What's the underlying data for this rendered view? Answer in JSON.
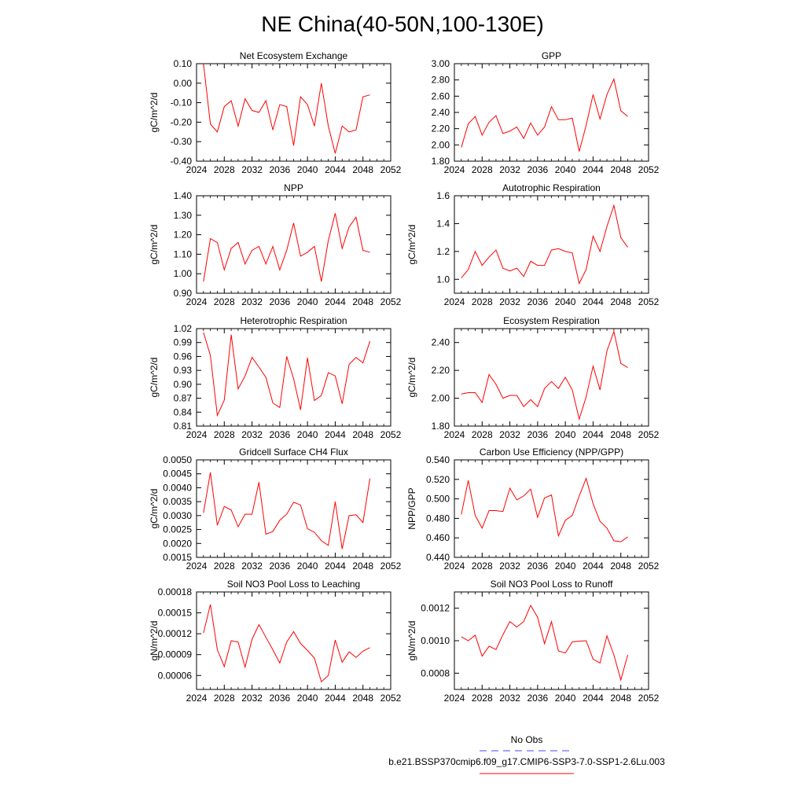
{
  "figure": {
    "title": "NE China(40-50N,100-130E)"
  },
  "legend": {
    "items": [
      {
        "label": "No Obs",
        "color": "#4a4aff",
        "dashed": true
      },
      {
        "label": "b.e21.BSSP370cmip6.f09_g17.CMIP6-SSP3-7.0-SSP1-2.6Lu.003",
        "color": "#ff0000",
        "dashed": false
      }
    ]
  },
  "chart_data": [
    {
      "type": "line",
      "title": "Net Ecosystem Exchange",
      "ylabel": "gC/m^2/d",
      "xlim": [
        2024,
        2052
      ],
      "ylim": [
        -0.4,
        0.1
      ],
      "xticks": [
        2024,
        2028,
        2032,
        2036,
        2040,
        2044,
        2048,
        2052
      ],
      "yticks": [
        "0.10",
        "0.00",
        "-0.10",
        "-0.20",
        "-0.30",
        "-0.40"
      ],
      "series": [
        {
          "color": "#ff0000",
          "x": [
            2025,
            2026,
            2027,
            2028,
            2029,
            2030,
            2031,
            2032,
            2033,
            2034,
            2035,
            2036,
            2037,
            2038,
            2039,
            2040,
            2041,
            2042,
            2043,
            2044,
            2045,
            2046,
            2047,
            2048,
            2049
          ],
          "y": [
            0.1,
            -0.21,
            -0.25,
            -0.12,
            -0.09,
            -0.22,
            -0.08,
            -0.14,
            -0.15,
            -0.09,
            -0.24,
            -0.11,
            -0.12,
            -0.32,
            -0.07,
            -0.11,
            -0.22,
            0.0,
            -0.22,
            -0.36,
            -0.22,
            -0.25,
            -0.24,
            -0.07,
            -0.06
          ]
        }
      ]
    },
    {
      "type": "line",
      "title": "GPP",
      "ylabel": "",
      "xlim": [
        2024,
        2052
      ],
      "ylim": [
        1.8,
        3.0
      ],
      "xticks": [
        2024,
        2028,
        2032,
        2036,
        2040,
        2044,
        2048,
        2052
      ],
      "yticks": [
        "3.00",
        "2.80",
        "2.60",
        "2.40",
        "2.20",
        "2.00",
        "1.80"
      ],
      "series": [
        {
          "color": "#ff0000",
          "x": [
            2025,
            2026,
            2027,
            2028,
            2029,
            2030,
            2031,
            2032,
            2033,
            2034,
            2035,
            2036,
            2037,
            2038,
            2039,
            2040,
            2041,
            2042,
            2043,
            2044,
            2045,
            2046,
            2047,
            2048,
            2049
          ],
          "y": [
            1.97,
            2.26,
            2.35,
            2.12,
            2.28,
            2.36,
            2.14,
            2.17,
            2.22,
            2.08,
            2.27,
            2.12,
            2.22,
            2.47,
            2.31,
            2.31,
            2.33,
            1.92,
            2.24,
            2.62,
            2.32,
            2.62,
            2.81,
            2.42,
            2.35
          ]
        }
      ]
    },
    {
      "type": "line",
      "title": "NPP",
      "ylabel": "gC/m^2/d",
      "xlim": [
        2024,
        2052
      ],
      "ylim": [
        0.9,
        1.4
      ],
      "xticks": [
        2024,
        2028,
        2032,
        2036,
        2040,
        2044,
        2048,
        2052
      ],
      "yticks": [
        "1.40",
        "1.30",
        "1.20",
        "1.10",
        "1.00",
        "0.90"
      ],
      "series": [
        {
          "color": "#ff0000",
          "x": [
            2025,
            2026,
            2027,
            2028,
            2029,
            2030,
            2031,
            2032,
            2033,
            2034,
            2035,
            2036,
            2037,
            2038,
            2039,
            2040,
            2041,
            2042,
            2043,
            2044,
            2045,
            2046,
            2047,
            2048,
            2049
          ],
          "y": [
            0.96,
            1.18,
            1.16,
            1.02,
            1.13,
            1.16,
            1.05,
            1.12,
            1.14,
            1.05,
            1.14,
            1.02,
            1.12,
            1.26,
            1.09,
            1.11,
            1.14,
            0.96,
            1.17,
            1.31,
            1.13,
            1.24,
            1.29,
            1.12,
            1.11
          ]
        }
      ]
    },
    {
      "type": "line",
      "title": "Autotrophic Respiration",
      "ylabel": "gC/m^2/d",
      "xlim": [
        2024,
        2052
      ],
      "ylim": [
        0.9,
        1.6
      ],
      "xticks": [
        2024,
        2028,
        2032,
        2036,
        2040,
        2044,
        2048,
        2052
      ],
      "yticks": [
        "1.6",
        "1.4",
        "1.2",
        "1.0"
      ],
      "series": [
        {
          "color": "#ff0000",
          "x": [
            2025,
            2026,
            2027,
            2028,
            2029,
            2030,
            2031,
            2032,
            2033,
            2034,
            2035,
            2036,
            2037,
            2038,
            2039,
            2040,
            2041,
            2042,
            2043,
            2044,
            2045,
            2046,
            2047,
            2048,
            2049
          ],
          "y": [
            1.01,
            1.07,
            1.2,
            1.1,
            1.16,
            1.21,
            1.08,
            1.06,
            1.08,
            1.02,
            1.13,
            1.1,
            1.1,
            1.21,
            1.22,
            1.2,
            1.19,
            0.97,
            1.07,
            1.31,
            1.2,
            1.38,
            1.53,
            1.3,
            1.23
          ]
        }
      ]
    },
    {
      "type": "line",
      "title": "Heterotrophic Respiration",
      "ylabel": "gC/m^2/d",
      "xlim": [
        2024,
        2052
      ],
      "ylim": [
        0.81,
        1.02
      ],
      "xticks": [
        2024,
        2028,
        2032,
        2036,
        2040,
        2044,
        2048,
        2052
      ],
      "yticks": [
        "1.02",
        "0.99",
        "0.96",
        "0.93",
        "0.90",
        "0.87",
        "0.84",
        "0.81"
      ],
      "series": [
        {
          "color": "#ff0000",
          "x": [
            2025,
            2026,
            2027,
            2028,
            2029,
            2030,
            2031,
            2032,
            2033,
            2034,
            2035,
            2036,
            2037,
            2038,
            2039,
            2040,
            2041,
            2042,
            2043,
            2044,
            2045,
            2046,
            2047,
            2048,
            2049
          ],
          "y": [
            1.012,
            0.962,
            0.833,
            0.866,
            1.007,
            0.89,
            0.918,
            0.958,
            0.937,
            0.915,
            0.86,
            0.85,
            0.96,
            0.912,
            0.845,
            0.957,
            0.865,
            0.876,
            0.925,
            0.918,
            0.858,
            0.943,
            0.958,
            0.946,
            0.993
          ]
        }
      ]
    },
    {
      "type": "line",
      "title": "Ecosystem Respiration",
      "ylabel": "gC/m^2/d",
      "xlim": [
        2024,
        2052
      ],
      "ylim": [
        1.8,
        2.5
      ],
      "xticks": [
        2024,
        2028,
        2032,
        2036,
        2040,
        2044,
        2048,
        2052
      ],
      "yticks": [
        "2.40",
        "2.20",
        "2.00",
        "1.80"
      ],
      "series": [
        {
          "color": "#ff0000",
          "x": [
            2025,
            2026,
            2027,
            2028,
            2029,
            2030,
            2031,
            2032,
            2033,
            2034,
            2035,
            2036,
            2037,
            2038,
            2039,
            2040,
            2041,
            2042,
            2043,
            2044,
            2045,
            2046,
            2047,
            2048,
            2049
          ],
          "y": [
            2.03,
            2.04,
            2.04,
            1.97,
            2.17,
            2.1,
            2.0,
            2.02,
            2.02,
            1.94,
            1.99,
            1.94,
            2.07,
            2.12,
            2.07,
            2.15,
            2.06,
            1.85,
            2.01,
            2.23,
            2.06,
            2.34,
            2.48,
            2.25,
            2.22
          ]
        }
      ]
    },
    {
      "type": "line",
      "title": "Gridcell Surface CH4 Flux",
      "ylabel": "gC/m^2/d",
      "xlim": [
        2024,
        2052
      ],
      "ylim": [
        0.0015,
        0.005
      ],
      "xticks": [
        2024,
        2028,
        2032,
        2036,
        2040,
        2044,
        2048,
        2052
      ],
      "yticks": [
        "0.0050",
        "0.0045",
        "0.0040",
        "0.0035",
        "0.0030",
        "0.0025",
        "0.0020",
        "0.0015"
      ],
      "series": [
        {
          "color": "#ff0000",
          "x": [
            2025,
            2026,
            2027,
            2028,
            2029,
            2030,
            2031,
            2032,
            2033,
            2034,
            2035,
            2036,
            2037,
            2038,
            2039,
            2040,
            2041,
            2042,
            2043,
            2044,
            2045,
            2046,
            2047,
            2048,
            2049
          ],
          "y": [
            0.0031,
            0.00455,
            0.00265,
            0.00333,
            0.0032,
            0.0026,
            0.00305,
            0.00305,
            0.0042,
            0.00233,
            0.00243,
            0.00283,
            0.00305,
            0.00348,
            0.00338,
            0.00253,
            0.0024,
            0.0021,
            0.00193,
            0.0035,
            0.0018,
            0.003,
            0.00303,
            0.00275,
            0.00433
          ]
        }
      ]
    },
    {
      "type": "line",
      "title": "Carbon Use Efficiency (NPP/GPP)",
      "ylabel": "NPP/GPP",
      "xlim": [
        2024,
        2052
      ],
      "ylim": [
        0.44,
        0.54
      ],
      "xticks": [
        2024,
        2028,
        2032,
        2036,
        2040,
        2044,
        2048,
        2052
      ],
      "yticks": [
        "0.540",
        "0.520",
        "0.500",
        "0.480",
        "0.460",
        "0.440"
      ],
      "series": [
        {
          "color": "#ff0000",
          "x": [
            2025,
            2026,
            2027,
            2028,
            2029,
            2030,
            2031,
            2032,
            2033,
            2034,
            2035,
            2036,
            2037,
            2038,
            2039,
            2040,
            2041,
            2042,
            2043,
            2044,
            2045,
            2046,
            2047,
            2048,
            2049
          ],
          "y": [
            0.484,
            0.519,
            0.483,
            0.47,
            0.488,
            0.488,
            0.487,
            0.511,
            0.499,
            0.503,
            0.51,
            0.481,
            0.501,
            0.504,
            0.462,
            0.478,
            0.483,
            0.503,
            0.521,
            0.495,
            0.477,
            0.47,
            0.457,
            0.456,
            0.461
          ]
        }
      ]
    },
    {
      "type": "line",
      "title": "Soil NO3 Pool Loss to Leaching",
      "ylabel": "gN/m^2/d",
      "xlim": [
        2024,
        2052
      ],
      "ylim": [
        4e-05,
        0.00018
      ],
      "xticks": [
        2024,
        2028,
        2032,
        2036,
        2040,
        2044,
        2048,
        2052
      ],
      "yticks": [
        "0.00018",
        "0.00015",
        "0.00012",
        "0.00009",
        "0.00006"
      ],
      "series": [
        {
          "color": "#ff0000",
          "x": [
            2025,
            2026,
            2027,
            2028,
            2029,
            2030,
            2031,
            2032,
            2033,
            2034,
            2035,
            2036,
            2037,
            2038,
            2039,
            2040,
            2041,
            2042,
            2043,
            2044,
            2045,
            2046,
            2047,
            2048,
            2049
          ],
          "y": [
            0.000121,
            0.000162,
            9.7e-05,
            7.3e-05,
            0.00011,
            0.000108,
            7.2e-05,
            0.000112,
            0.000133,
            0.000115,
            9.7e-05,
            7.8e-05,
            0.000108,
            0.000123,
            0.000106,
            9.6e-05,
            8.5e-05,
            5.1e-05,
            6e-05,
            0.000111,
            7.9e-05,
            9.4e-05,
            8.6e-05,
            9.5e-05,
            0.0001
          ]
        }
      ]
    },
    {
      "type": "line",
      "title": "Soil NO3 Pool Loss to Runoff",
      "ylabel": "gN/m^2/d",
      "xlim": [
        2024,
        2052
      ],
      "ylim": [
        0.0007,
        0.0013
      ],
      "xticks": [
        2024,
        2028,
        2032,
        2036,
        2040,
        2044,
        2048,
        2052
      ],
      "yticks": [
        "0.0012",
        "0.0010",
        "0.0008"
      ],
      "series": [
        {
          "color": "#ff0000",
          "x": [
            2025,
            2026,
            2027,
            2028,
            2029,
            2030,
            2031,
            2032,
            2033,
            2034,
            2035,
            2036,
            2037,
            2038,
            2039,
            2040,
            2041,
            2042,
            2043,
            2044,
            2045,
            2046,
            2047,
            2048,
            2049
          ],
          "y": [
            0.001024,
            0.001,
            0.001034,
            0.000905,
            0.000966,
            0.000946,
            0.001037,
            0.001118,
            0.001084,
            0.001118,
            0.001217,
            0.001144,
            0.000981,
            0.001117,
            0.000937,
            0.000924,
            0.000993,
            0.000997,
            0.001,
            0.000886,
            0.000863,
            0.00103,
            0.000913,
            0.000758,
            0.000913
          ]
        }
      ]
    }
  ]
}
